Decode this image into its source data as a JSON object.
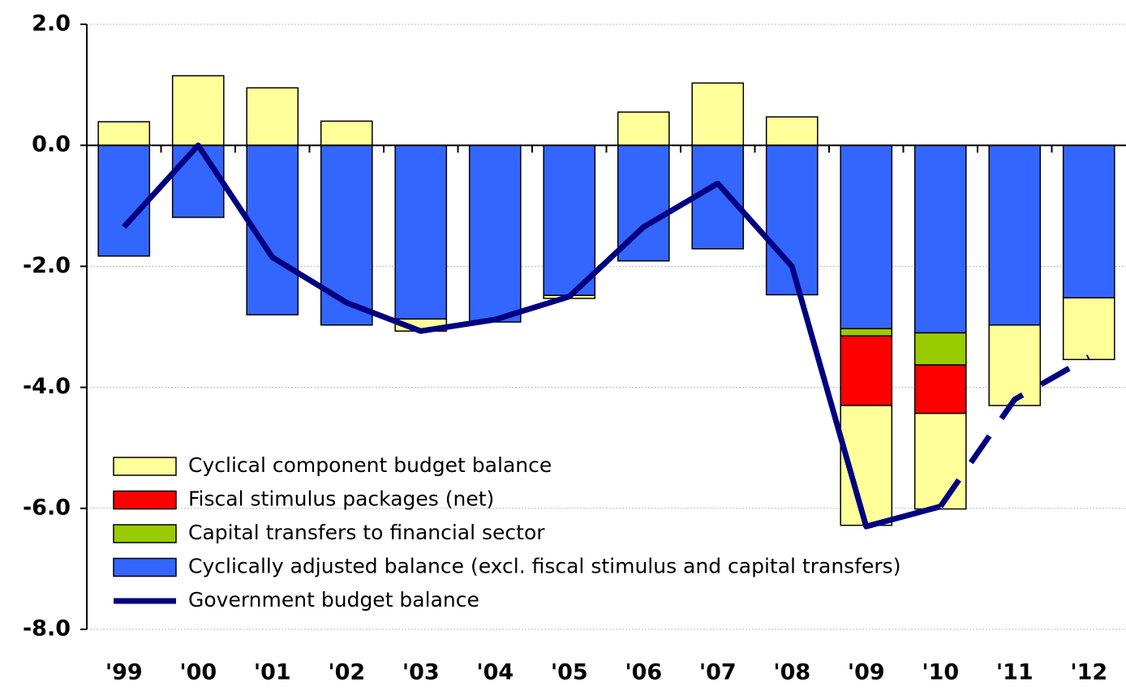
{
  "chart_data": {
    "type": "bar",
    "categories": [
      "'99",
      "'00",
      "'01",
      "'02",
      "'03",
      "'04",
      "'05",
      "'06",
      "'07",
      "'08",
      "'09",
      "'10",
      "'11",
      "'12"
    ],
    "series": [
      {
        "name": "Cyclical component budget balance",
        "type": "bar",
        "color": "#ffff99",
        "values": [
          0.39,
          1.15,
          0.95,
          0.4,
          -0.2,
          0,
          -0.05,
          0.55,
          1.03,
          0.47,
          -1.98,
          -1.58,
          -1.33,
          -1.02
        ]
      },
      {
        "name": "Fiscal stimulus packages (net)",
        "type": "bar",
        "color": "#ff0000",
        "values": [
          0,
          0,
          0,
          0,
          0,
          0,
          0,
          0,
          0,
          0,
          -1.15,
          -0.8,
          0,
          0
        ]
      },
      {
        "name": "Capital transfers to financial sector",
        "type": "bar",
        "color": "#99cc00",
        "values": [
          0,
          0,
          0,
          0,
          0,
          0,
          0,
          0,
          0,
          0,
          -0.12,
          -0.53,
          0,
          0
        ]
      },
      {
        "name": "Cyclically adjusted balance (excl. fiscal stimulus and capital transfers)",
        "type": "bar",
        "color": "#3366ff",
        "values": [
          -1.83,
          -1.19,
          -2.8,
          -2.97,
          -2.87,
          -2.92,
          -2.48,
          -1.91,
          -1.71,
          -2.47,
          -3.03,
          -3.1,
          -2.97,
          -2.52
        ]
      },
      {
        "name": "Government budget balance",
        "type": "line",
        "color": "#000080",
        "dashed_from": 11,
        "values": [
          -1.35,
          0.0,
          -1.85,
          -2.6,
          -3.07,
          -2.88,
          -2.5,
          -1.35,
          -0.63,
          -2.0,
          -6.3,
          -5.97,
          -4.2,
          -3.5
        ]
      }
    ],
    "ylim": [
      -8,
      2
    ],
    "yticks": [
      {
        "value": -8,
        "label": "-8.0"
      },
      {
        "value": -6,
        "label": "-6.0"
      },
      {
        "value": -4,
        "label": "-4.0"
      },
      {
        "value": -2,
        "label": "-2.0"
      },
      {
        "value": 0,
        "label": "0.0"
      },
      {
        "value": 2,
        "label": "2.0"
      }
    ],
    "grid": true
  }
}
